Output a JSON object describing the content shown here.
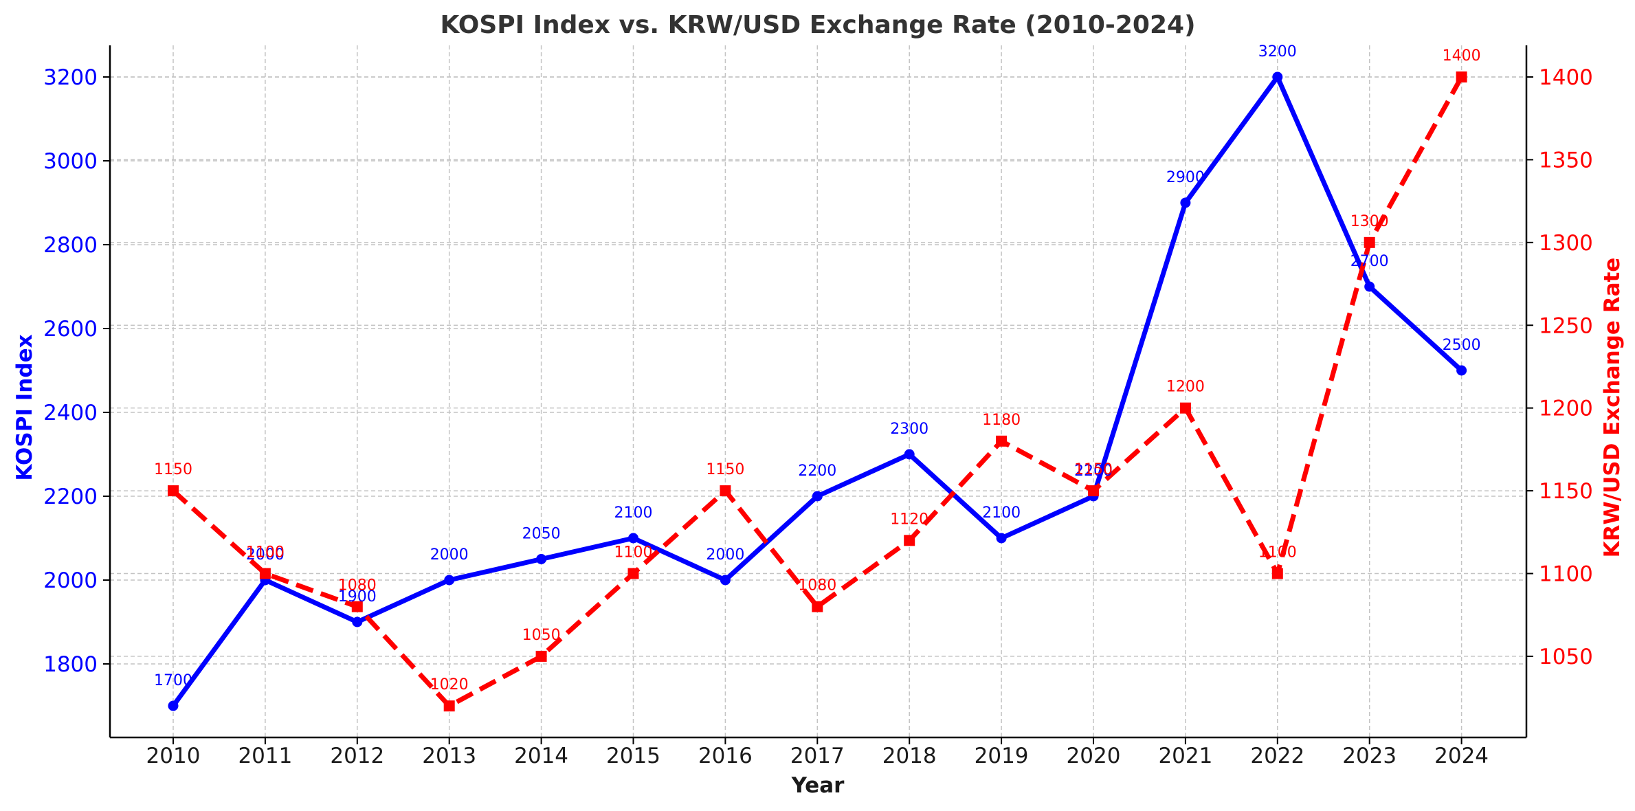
{
  "chart_data": {
    "type": "line",
    "title": "KOSPI Index vs. KRW/USD Exchange Rate (2010-2024)",
    "xlabel": "Year",
    "x": [
      2010,
      2011,
      2012,
      2013,
      2014,
      2015,
      2016,
      2017,
      2018,
      2019,
      2020,
      2021,
      2022,
      2023,
      2024
    ],
    "x_tick_labels": [
      "2010",
      "2011",
      "2012",
      "2013",
      "2014",
      "2015",
      "2016",
      "2017",
      "2018",
      "2019",
      "2020",
      "2021",
      "2022",
      "2023",
      "2024"
    ],
    "grid": true,
    "legend": "none",
    "series": [
      {
        "name": "KOSPI Index",
        "axis": "left",
        "ylabel": "KOSPI Index",
        "values": [
          1700,
          2000,
          1900,
          2000,
          2050,
          2100,
          2000,
          2200,
          2300,
          2100,
          2200,
          2900,
          3200,
          2700,
          2500
        ],
        "labels": [
          "1700",
          "2000",
          "1900",
          "2000",
          "2050",
          "2100",
          "2000",
          "2200",
          "2300",
          "2100",
          "2200",
          "2900",
          "3200",
          "2700",
          "2500"
        ],
        "color": "#0000ff",
        "line_style": "solid",
        "marker": "circle",
        "ylim": [
          1625,
          3275
        ],
        "yticks": [
          1800,
          2000,
          2200,
          2400,
          2600,
          2800,
          3000,
          3200
        ],
        "ytick_labels": [
          "1800",
          "2000",
          "2200",
          "2400",
          "2600",
          "2800",
          "3000",
          "3200"
        ]
      },
      {
        "name": "KRW/USD Exchange Rate",
        "axis": "right",
        "ylabel": "KRW/USD Exchange Rate",
        "values": [
          1150,
          1100,
          1080,
          1020,
          1050,
          1100,
          1150,
          1080,
          1120,
          1180,
          1150,
          1200,
          1100,
          1300,
          1400
        ],
        "labels": [
          "1150",
          "1100",
          "1080",
          "1020",
          "1050",
          "1100",
          "1150",
          "1080",
          "1120",
          "1180",
          "1150",
          "1200",
          "1100",
          "1300",
          "1400"
        ],
        "color": "#ff0000",
        "line_style": "dashed",
        "marker": "square",
        "ylim": [
          1001,
          1419
        ],
        "yticks": [
          1050,
          1100,
          1150,
          1200,
          1250,
          1300,
          1350,
          1400
        ],
        "ytick_labels": [
          "1050",
          "1100",
          "1150",
          "1200",
          "1250",
          "1300",
          "1350",
          "1400"
        ]
      }
    ]
  }
}
